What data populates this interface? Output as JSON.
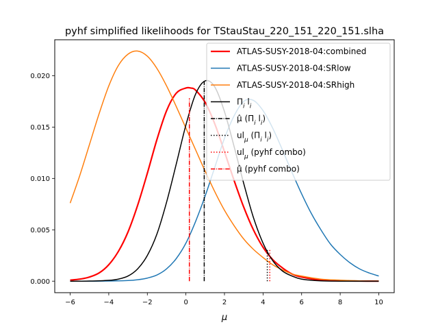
{
  "chart_data": {
    "type": "line",
    "title": "pyhf simplified likelihoods for TStauStau_220_151_220_151.slha",
    "xlabel": "μ",
    "ylabel": "",
    "xlim": [
      -6.8,
      10.8
    ],
    "ylim": [
      -0.00112,
      0.0235
    ],
    "xticks": [
      -6,
      -4,
      -2,
      0,
      2,
      4,
      6,
      8,
      10
    ],
    "xtick_labels": [
      "−6",
      "−4",
      "−2",
      "0",
      "2",
      "4",
      "6",
      "8",
      "10"
    ],
    "yticks": [
      0.0,
      0.005,
      0.01,
      0.015,
      0.02
    ],
    "ytick_labels": [
      "0.000",
      "0.005",
      "0.010",
      "0.015",
      "0.020"
    ],
    "grid": false,
    "legend_position": "top-right",
    "series": [
      {
        "name": "ATLAS-SUSY-2018-04:combined",
        "color": "#ff0000",
        "style": "solid",
        "width": "thick",
        "x": [
          -6.0,
          -5.5,
          -5.0,
          -4.5,
          -4.0,
          -3.5,
          -3.0,
          -2.5,
          -2.0,
          -1.5,
          -1.0,
          -0.5,
          0.0,
          0.25,
          0.5,
          1.0,
          1.5,
          2.0,
          2.5,
          3.0,
          3.5,
          4.0,
          4.5,
          5.0,
          5.5,
          6.0,
          7.0,
          8.0,
          9.0,
          10.0
        ],
        "y": [
          0.0001,
          0.0002,
          0.0004,
          0.0008,
          0.0016,
          0.0029,
          0.0048,
          0.0074,
          0.0105,
          0.0138,
          0.0166,
          0.0183,
          0.0188,
          0.0188,
          0.0186,
          0.0174,
          0.0153,
          0.0126,
          0.0098,
          0.0072,
          0.005,
          0.0033,
          0.0021,
          0.0013,
          0.0007,
          0.0004,
          0.0001,
          3e-05,
          1e-05,
          0.0
        ]
      },
      {
        "name": "ATLAS-SUSY-2018-04:SRlow",
        "color": "#1f77b4",
        "style": "solid",
        "width": "normal",
        "x": [
          -6.0,
          -5.0,
          -4.0,
          -3.0,
          -2.5,
          -2.0,
          -1.5,
          -1.0,
          -0.5,
          0.0,
          0.5,
          1.0,
          1.5,
          2.0,
          2.5,
          3.0,
          3.5,
          4.0,
          4.5,
          5.0,
          5.5,
          6.0,
          6.5,
          7.0,
          7.5,
          8.0,
          8.5,
          9.0,
          9.5,
          10.0
        ],
        "y": [
          0.0,
          0.0,
          1e-05,
          6e-05,
          0.00014,
          0.0003,
          0.0006,
          0.0012,
          0.0022,
          0.0037,
          0.0058,
          0.0083,
          0.0111,
          0.0139,
          0.0161,
          0.0175,
          0.0176,
          0.0166,
          0.0149,
          0.0128,
          0.0106,
          0.0085,
          0.0066,
          0.005,
          0.0036,
          0.0026,
          0.0018,
          0.0012,
          0.0008,
          0.0005
        ]
      },
      {
        "name": "ATLAS-SUSY-2018-04:SRhigh",
        "color": "#ff7f0e",
        "style": "solid",
        "width": "normal",
        "x": [
          -6.0,
          -5.5,
          -5.0,
          -4.5,
          -4.0,
          -3.5,
          -3.0,
          -2.5,
          -2.0,
          -1.5,
          -1.0,
          -0.5,
          0.0,
          0.5,
          1.0,
          1.5,
          2.0,
          2.5,
          3.0,
          3.5,
          4.0,
          4.5,
          5.0,
          5.5,
          6.0,
          7.0,
          8.0,
          9.0,
          10.0
        ],
        "y": [
          0.0076,
          0.0103,
          0.0133,
          0.0163,
          0.019,
          0.021,
          0.0221,
          0.0224,
          0.0219,
          0.0207,
          0.019,
          0.017,
          0.0149,
          0.0128,
          0.0107,
          0.0087,
          0.0069,
          0.0054,
          0.0041,
          0.0031,
          0.0023,
          0.0016,
          0.0011,
          0.0007,
          0.0005,
          0.0002,
          0.0001,
          3e-05,
          1e-05
        ]
      },
      {
        "name": "Π_i l_i",
        "color": "#000000",
        "style": "solid",
        "width": "normal",
        "x": [
          -6.0,
          -5.0,
          -4.0,
          -3.5,
          -3.0,
          -2.5,
          -2.0,
          -1.5,
          -1.0,
          -0.5,
          0.0,
          0.5,
          1.0,
          1.5,
          2.0,
          2.5,
          3.0,
          3.5,
          4.0,
          4.5,
          5.0,
          5.5,
          6.0,
          7.0,
          8.0,
          9.0,
          10.0
        ],
        "y": [
          0.0,
          1e-05,
          8e-05,
          0.0002,
          0.0005,
          0.0012,
          0.0025,
          0.0046,
          0.0077,
          0.0114,
          0.0152,
          0.0182,
          0.0195,
          0.0189,
          0.0165,
          0.0131,
          0.0095,
          0.0062,
          0.0037,
          0.002,
          0.001,
          0.0005,
          0.0002,
          3e-05,
          0.0,
          0.0,
          0.0
        ]
      }
    ],
    "vlines": [
      {
        "name": "μ̂ (Π_i l_i)",
        "x": 0.95,
        "ymin": 0.0,
        "ymax": 0.0195,
        "color": "#000000",
        "style": "dashdot"
      },
      {
        "name": "ul_μ (Π_i l_i)",
        "x": 4.22,
        "ymin": 0.0,
        "ymax": 0.0031,
        "color": "#000000",
        "style": "dotted"
      },
      {
        "name": "ul_μ (pyhf combo)",
        "x": 4.35,
        "ymin": 0.0,
        "ymax": 0.0031,
        "color": "#ff0000",
        "style": "dotted"
      },
      {
        "name": "μ̂ (pyhf combo)",
        "x": 0.18,
        "ymin": 0.0,
        "ymax": 0.0178,
        "color": "#ff0000",
        "style": "dashdot"
      }
    ],
    "legend": [
      {
        "label": "ATLAS-SUSY-2018-04:combined",
        "color": "#ff0000",
        "style": "solid",
        "thick": true
      },
      {
        "label": "ATLAS-SUSY-2018-04:SRlow",
        "color": "#1f77b4",
        "style": "solid",
        "thick": false
      },
      {
        "label": "ATLAS-SUSY-2018-04:SRhigh",
        "color": "#ff7f0e",
        "style": "solid",
        "thick": false
      },
      {
        "label": "Π_i l_i",
        "color": "#000000",
        "style": "solid",
        "thick": false
      },
      {
        "label": "μ̂ (Π_i l_i)",
        "color": "#000000",
        "style": "dashdot",
        "thick": false
      },
      {
        "label": "ul_μ (Π_i l_i)",
        "color": "#000000",
        "style": "dotted",
        "thick": false
      },
      {
        "label": "ul_μ (pyhf combo)",
        "color": "#ff0000",
        "style": "dotted",
        "thick": false
      },
      {
        "label": "μ̂ (pyhf combo)",
        "color": "#ff0000",
        "style": "dashdot",
        "thick": false
      }
    ]
  }
}
